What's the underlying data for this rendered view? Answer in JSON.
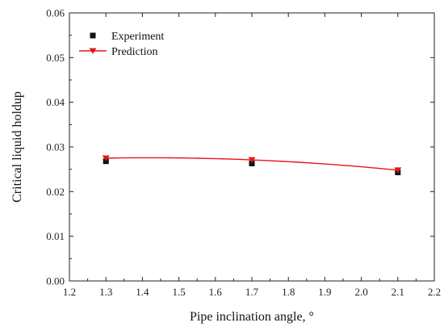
{
  "chart_data": {
    "type": "scatter",
    "title": "",
    "xlabel": "Pipe inclination angle, °",
    "ylabel": "Critical liquid holdup",
    "xlim": [
      1.2,
      2.2
    ],
    "ylim": [
      0.0,
      0.06
    ],
    "x_ticks": [
      "1.2",
      "1.3",
      "1.4",
      "1.5",
      "1.6",
      "1.7",
      "1.8",
      "1.9",
      "2.0",
      "2.1",
      "2.2"
    ],
    "y_ticks": [
      "0.00",
      "0.01",
      "0.02",
      "0.03",
      "0.04",
      "0.05",
      "0.06"
    ],
    "grid": false,
    "legend_position": "top-left",
    "series": [
      {
        "name": "Experiment",
        "marker": "square",
        "color": "#111111",
        "x": [
          1.3,
          1.7,
          2.1
        ],
        "y": [
          0.0268,
          0.0263,
          0.0243
        ]
      },
      {
        "name": "Prediction",
        "marker": "triangle-down",
        "line": "smooth",
        "color": "#e8141c",
        "x": [
          1.3,
          1.7,
          2.1
        ],
        "y": [
          0.0275,
          0.0271,
          0.0248
        ]
      }
    ]
  }
}
